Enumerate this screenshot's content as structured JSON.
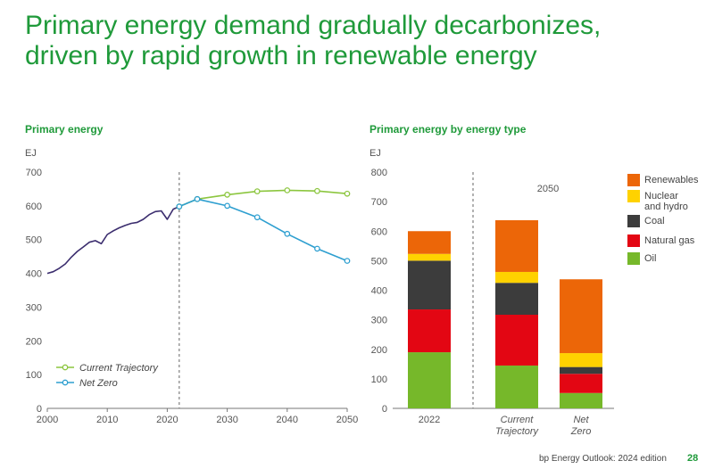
{
  "headline": {
    "line1": "Primary energy demand gradually decarbonizes,",
    "line2": "driven by rapid growth in renewable energy"
  },
  "colors": {
    "brand_green": "#1f9a3a",
    "history": "#3b2d6e",
    "current_trajectory": "#8cc63f",
    "net_zero": "#2e9fd0",
    "renewables": "#ec6608",
    "nuclear_hydro": "#ffd200",
    "coal": "#3c3c3c",
    "natural_gas": "#e30613",
    "oil": "#76b82a"
  },
  "footer": {
    "source": "bp Energy Outlook: 2024 edition",
    "page": "28"
  },
  "chart_data": [
    {
      "type": "line",
      "title": "Primary energy",
      "ylabel": "EJ",
      "xlabel": "",
      "xlim": [
        2000,
        2050
      ],
      "ylim": [
        0,
        700
      ],
      "xticks": [
        2000,
        2010,
        2020,
        2030,
        2040,
        2050
      ],
      "yticks": [
        0,
        100,
        200,
        300,
        400,
        500,
        600,
        700
      ],
      "divider_x": 2022,
      "grid": false,
      "legend_position": "bottom-left",
      "series": [
        {
          "name": "History",
          "color_key": "history",
          "show_in_legend": false,
          "markers": false,
          "x": [
            2000,
            2001,
            2002,
            2003,
            2004,
            2005,
            2006,
            2007,
            2008,
            2009,
            2010,
            2011,
            2012,
            2013,
            2014,
            2015,
            2016,
            2017,
            2018,
            2019,
            2020,
            2021,
            2022
          ],
          "y": [
            400,
            405,
            415,
            428,
            448,
            465,
            478,
            492,
            497,
            488,
            515,
            526,
            535,
            542,
            548,
            551,
            560,
            574,
            583,
            585,
            560,
            590,
            598
          ]
        },
        {
          "name": "Current Trajectory",
          "color_key": "current_trajectory",
          "show_in_legend": true,
          "markers": true,
          "x": [
            2022,
            2025,
            2030,
            2035,
            2040,
            2045,
            2050
          ],
          "y": [
            598,
            620,
            633,
            643,
            646,
            644,
            636
          ]
        },
        {
          "name": "Net Zero",
          "color_key": "net_zero",
          "show_in_legend": true,
          "markers": true,
          "x": [
            2022,
            2025,
            2030,
            2035,
            2040,
            2045,
            2050
          ],
          "y": [
            598,
            620,
            600,
            566,
            517,
            473,
            437
          ]
        }
      ]
    },
    {
      "type": "bar",
      "stacked": true,
      "title": "Primary energy by energy type",
      "ylabel": "EJ",
      "ylim": [
        0,
        800
      ],
      "yticks": [
        0,
        100,
        200,
        300,
        400,
        500,
        600,
        700,
        800
      ],
      "group_label": "2050",
      "categories": [
        "2022",
        "Current\nTrajectory",
        "Net\nZero"
      ],
      "series": [
        {
          "name": "Oil",
          "color_key": "oil",
          "values": [
            190,
            145,
            52
          ]
        },
        {
          "name": "Natural gas",
          "color_key": "natural_gas",
          "values": [
            145,
            172,
            65
          ]
        },
        {
          "name": "Coal",
          "color_key": "coal",
          "values": [
            165,
            108,
            23
          ]
        },
        {
          "name": "Nuclear\nand hydro",
          "color_key": "nuclear_hydro",
          "values": [
            23,
            37,
            47
          ]
        },
        {
          "name": "Renewables",
          "color_key": "renewables",
          "values": [
            77,
            175,
            250
          ]
        }
      ],
      "legend_order": [
        "Renewables",
        "Nuclear\nand hydro",
        "Coal",
        "Natural gas",
        "Oil"
      ],
      "legend_position": "right"
    }
  ]
}
